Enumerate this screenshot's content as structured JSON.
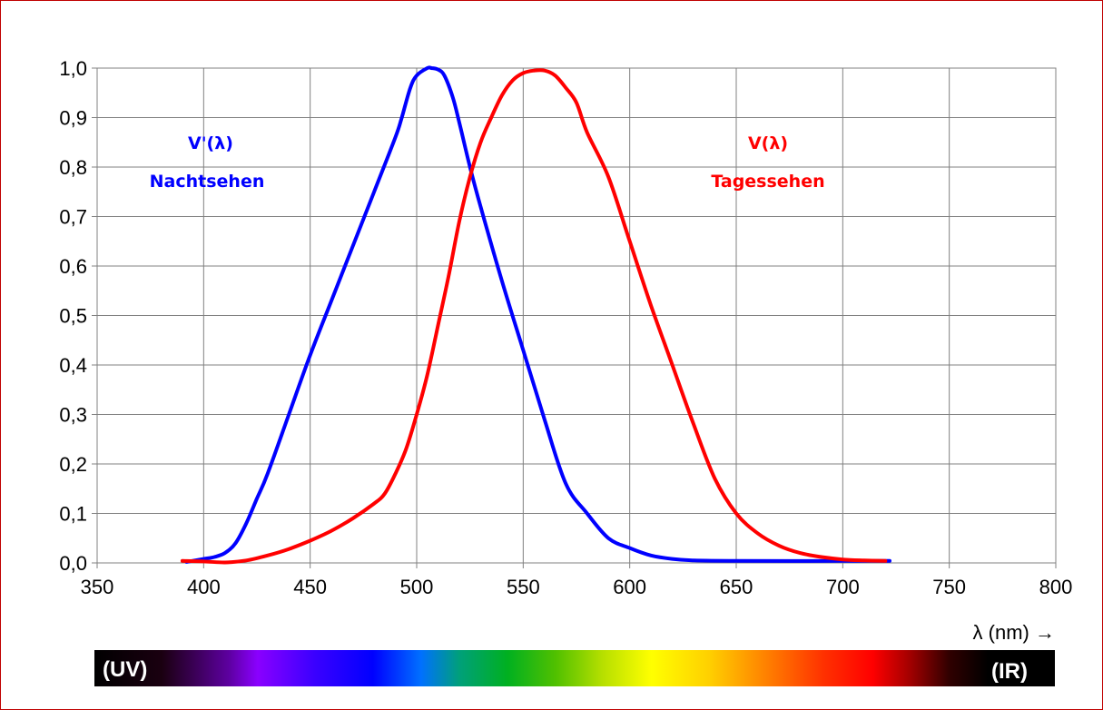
{
  "chart_data": {
    "type": "line",
    "xlabel": "λ (nm) →",
    "ylabel": "",
    "xlim": [
      350,
      800
    ],
    "ylim": [
      0.0,
      1.0
    ],
    "x_ticks": [
      "350",
      "400",
      "450",
      "500",
      "550",
      "600",
      "650",
      "700",
      "750",
      "800"
    ],
    "y_ticks": [
      "0,0",
      "0,1",
      "0,2",
      "0,3",
      "0,4",
      "0,5",
      "0,6",
      "0,7",
      "0,8",
      "0,9",
      "1,0"
    ],
    "grid": true,
    "series": [
      {
        "name": "V'(λ)",
        "subtitle": "Nachtsehen",
        "color": "#0000ff",
        "x": [
          392,
          400,
          405,
          410,
          415,
          420,
          425,
          430,
          440,
          450,
          460,
          470,
          480,
          490,
          493,
          497,
          500,
          505,
          507,
          510,
          513,
          517,
          520,
          525,
          530,
          540,
          550,
          560,
          570,
          580,
          590,
          600,
          610,
          620,
          630,
          650,
          700,
          722
        ],
        "values": [
          0.002,
          0.008,
          0.012,
          0.02,
          0.04,
          0.08,
          0.13,
          0.18,
          0.3,
          0.42,
          0.53,
          0.64,
          0.75,
          0.86,
          0.9,
          0.96,
          0.985,
          1.0,
          1.0,
          0.997,
          0.985,
          0.94,
          0.89,
          0.8,
          0.72,
          0.57,
          0.43,
          0.29,
          0.16,
          0.1,
          0.05,
          0.03,
          0.015,
          0.008,
          0.005,
          0.004,
          0.004,
          0.004
        ]
      },
      {
        "name": "V(λ)",
        "subtitle": "Tagessehen",
        "color": "#ff0000",
        "x": [
          390,
          400,
          410,
          420,
          430,
          440,
          450,
          460,
          470,
          480,
          485,
          490,
          495,
          500,
          505,
          510,
          515,
          520,
          525,
          530,
          535,
          540,
          545,
          550,
          555,
          560,
          565,
          570,
          575,
          580,
          590,
          600,
          610,
          620,
          630,
          640,
          650,
          660,
          670,
          680,
          690,
          700,
          710,
          720
        ],
        "values": [
          0.004,
          0.003,
          0.001,
          0.005,
          0.015,
          0.028,
          0.045,
          0.065,
          0.09,
          0.12,
          0.14,
          0.18,
          0.23,
          0.3,
          0.38,
          0.48,
          0.58,
          0.69,
          0.78,
          0.85,
          0.9,
          0.945,
          0.975,
          0.99,
          0.995,
          0.995,
          0.985,
          0.96,
          0.93,
          0.87,
          0.78,
          0.65,
          0.52,
          0.4,
          0.28,
          0.17,
          0.1,
          0.06,
          0.035,
          0.02,
          0.012,
          0.007,
          0.005,
          0.004
        ]
      }
    ],
    "spectrum_bar": {
      "left_label": "(UV)",
      "right_label": "(IR)"
    }
  }
}
